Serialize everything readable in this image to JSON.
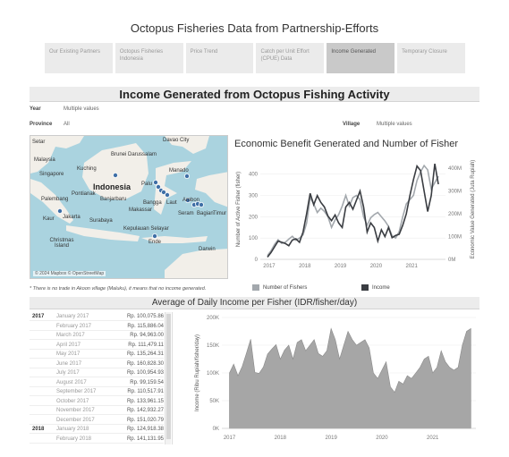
{
  "page_title": "Octopus Fisheries Data from Partnership-Efforts",
  "tabs": [
    {
      "label": "Our Existing Partners"
    },
    {
      "label": "Octopus Fisheries Indonesia"
    },
    {
      "label": "Price Trend"
    },
    {
      "label": "Catch per Unit Effort (CPUE) Data"
    },
    {
      "label": "Income Generated"
    },
    {
      "label": "Temporary Closure"
    }
  ],
  "active_tab": "Income Generated",
  "section_title": "Income Generated from Octopus Fishing Activity",
  "filters": {
    "year_label": "Year",
    "year_value": "Multiple values",
    "province_label": "Province",
    "province_value": "All",
    "village_label": "Village",
    "village_value": "Multiple values"
  },
  "map": {
    "attribution": "© 2024 Mapbox © OpenStreetMap",
    "labels": [
      "Setar",
      "Brunei Darussalam",
      "Davao City",
      "Malaysia",
      "Kuching",
      "Singapore",
      "Indonesia",
      "Manado",
      "Palu",
      "Pontianak",
      "Banjarbaru",
      "Palembang",
      "Makassar",
      "Bangga",
      "Laut",
      "Ambon",
      "Jakarta",
      "Surabaya",
      "Seram",
      "Bagian",
      "Timur",
      "Kaur",
      "Kepulauan Selayar",
      "Christmas Island",
      "Ende",
      "Darwin"
    ],
    "colors": {
      "sea": "#aad3df",
      "land": "#f2efe9",
      "marker": "#3f6fa6"
    }
  },
  "footnote": "* There is no trade in Akoon village (Maluku), it means that no income generated.",
  "chart1": {
    "title": "Economic Benefit Generated and Number of Fisher",
    "ylabel_left": "Number of Active Fisher (fisher)",
    "ylabel_right": "Economic Value Generated (Juta Rupiah)",
    "y_ticks_left": [
      "0",
      "100",
      "200",
      "300",
      "400"
    ],
    "y_ticks_right": [
      "0M",
      "100M",
      "200M",
      "300M",
      "400M"
    ],
    "x_ticks": [
      "2017",
      "2018",
      "2019",
      "2020",
      "2021"
    ],
    "legend": [
      {
        "name": "Number of Fishers",
        "color": "#a3a8ad"
      },
      {
        "name": "Income",
        "color": "#3a3d42"
      }
    ]
  },
  "chart2": {
    "title": "Average of Daily Income per Fisher (IDR/fisher/day)",
    "ylabel": "Income (Ribu Rupiah/fisher/day)",
    "y_ticks": [
      "0K",
      "50K",
      "100K",
      "150K",
      "200K"
    ],
    "x_ticks": [
      "2017",
      "2018",
      "2019",
      "2020",
      "2021"
    ]
  },
  "table": {
    "rows": [
      {
        "year": "2017",
        "month": "January 2017",
        "value": "Rp. 100,075.86"
      },
      {
        "year": "",
        "month": "February 2017",
        "value": "Rp. 115,886.04"
      },
      {
        "year": "",
        "month": "March 2017",
        "value": "Rp. 94,963.00"
      },
      {
        "year": "",
        "month": "April 2017",
        "value": "Rp. 111,479.11"
      },
      {
        "year": "",
        "month": "May 2017",
        "value": "Rp. 135,264.31"
      },
      {
        "year": "",
        "month": "June 2017",
        "value": "Rp. 160,828.30"
      },
      {
        "year": "",
        "month": "July 2017",
        "value": "Rp. 100,954.93"
      },
      {
        "year": "",
        "month": "August 2017",
        "value": "Rp. 99,159.54"
      },
      {
        "year": "",
        "month": "September 2017",
        "value": "Rp. 110,517.91"
      },
      {
        "year": "",
        "month": "October 2017",
        "value": "Rp. 133,961.15"
      },
      {
        "year": "",
        "month": "November 2017",
        "value": "Rp. 142,932.27"
      },
      {
        "year": "",
        "month": "December 2017",
        "value": "Rp. 151,020.79"
      },
      {
        "year": "2018",
        "month": "January 2018",
        "value": "Rp. 124,918.38"
      },
      {
        "year": "",
        "month": "February 2018",
        "value": "Rp. 141,131.95"
      }
    ]
  },
  "chart_data": [
    {
      "type": "line",
      "title": "Economic Benefit Generated and Number of Fisher",
      "xlabel": "",
      "ylabel": "Number of Active Fisher (fisher)",
      "x_range": [
        2016.75,
        2021.95
      ],
      "ylim": [
        0,
        470
      ],
      "y2lim": [
        0,
        440
      ],
      "series": [
        {
          "name": "Number of Fishers",
          "axis": "left",
          "x": [
            2016.95,
            2017.05,
            2017.15,
            2017.25,
            2017.35,
            2017.45,
            2017.55,
            2017.65,
            2017.75,
            2017.85,
            2017.95,
            2018.05,
            2018.15,
            2018.25,
            2018.35,
            2018.45,
            2018.55,
            2018.65,
            2018.75,
            2018.85,
            2018.95,
            2019.05,
            2019.15,
            2019.25,
            2019.35,
            2019.45,
            2019.55,
            2019.65,
            2019.75,
            2019.85,
            2019.95,
            2020.05,
            2020.15,
            2020.25,
            2020.35,
            2020.45,
            2020.55,
            2020.65,
            2020.75,
            2020.85,
            2020.95,
            2021.05,
            2021.15,
            2021.25,
            2021.35,
            2021.45,
            2021.55,
            2021.65,
            2021.75
          ],
          "y": [
            18,
            40,
            70,
            92,
            75,
            80,
            95,
            108,
            90,
            100,
            115,
            170,
            290,
            260,
            220,
            240,
            225,
            200,
            150,
            185,
            210,
            250,
            300,
            250,
            290,
            300,
            280,
            200,
            160,
            195,
            210,
            220,
            200,
            180,
            155,
            110,
            100,
            130,
            200,
            260,
            280,
            300,
            370,
            410,
            440,
            420,
            330,
            360,
            390
          ]
        },
        {
          "name": "Income",
          "axis": "right",
          "x": [
            2016.95,
            2017.05,
            2017.15,
            2017.25,
            2017.35,
            2017.45,
            2017.55,
            2017.65,
            2017.75,
            2017.85,
            2017.95,
            2018.05,
            2018.15,
            2018.25,
            2018.35,
            2018.45,
            2018.55,
            2018.65,
            2018.75,
            2018.85,
            2018.95,
            2019.05,
            2019.15,
            2019.25,
            2019.35,
            2019.45,
            2019.55,
            2019.65,
            2019.75,
            2019.85,
            2019.95,
            2020.05,
            2020.15,
            2020.25,
            2020.35,
            2020.45,
            2020.55,
            2020.65,
            2020.75,
            2020.85,
            2020.95,
            2021.05,
            2021.15,
            2021.25,
            2021.35,
            2021.45,
            2021.55,
            2021.65,
            2021.75
          ],
          "y": [
            10,
            30,
            55,
            80,
            75,
            70,
            60,
            85,
            90,
            75,
            120,
            200,
            290,
            240,
            280,
            250,
            230,
            190,
            170,
            195,
            160,
            140,
            230,
            250,
            220,
            260,
            300,
            230,
            120,
            160,
            140,
            80,
            130,
            100,
            140,
            95,
            105,
            110,
            150,
            200,
            280,
            350,
            410,
            390,
            300,
            210,
            280,
            420,
            330
          ]
        }
      ],
      "x_ticks": [
        "2017",
        "2018",
        "2019",
        "2020",
        "2021"
      ]
    },
    {
      "type": "area",
      "title": "Average of Daily Income per Fisher (IDR/fisher/day)",
      "xlabel": "",
      "ylabel": "Income (Ribu Rupiah/fisher/day)",
      "x_range": [
        2016.85,
        2021.85
      ],
      "ylim": [
        0,
        200000
      ],
      "series": [
        {
          "name": "",
          "x": [
            2017.0,
            2017.083,
            2017.167,
            2017.25,
            2017.333,
            2017.417,
            2017.5,
            2017.583,
            2017.667,
            2017.75,
            2017.833,
            2017.917,
            2018.0,
            2018.083,
            2018.167,
            2018.25,
            2018.333,
            2018.417,
            2018.5,
            2018.583,
            2018.667,
            2018.75,
            2018.833,
            2018.917,
            2019.0,
            2019.083,
            2019.167,
            2019.25,
            2019.333,
            2019.417,
            2019.5,
            2019.583,
            2019.667,
            2019.75,
            2019.833,
            2019.917,
            2020.0,
            2020.083,
            2020.167,
            2020.25,
            2020.333,
            2020.417,
            2020.5,
            2020.583,
            2020.667,
            2020.75,
            2020.833,
            2020.917,
            2021.0,
            2021.083,
            2021.167,
            2021.25,
            2021.333,
            2021.417,
            2021.5,
            2021.583,
            2021.667,
            2021.75
          ],
          "y": [
            100076,
            115886,
            94963,
            111479,
            135264,
            160828,
            100955,
            99160,
            110518,
            133961,
            142932,
            151021,
            124918,
            141132,
            150000,
            125000,
            155000,
            160000,
            140000,
            150000,
            160000,
            135000,
            130000,
            140000,
            180000,
            160000,
            125000,
            150000,
            175000,
            160000,
            150000,
            155000,
            160000,
            145000,
            100000,
            90000,
            105000,
            120000,
            75000,
            65000,
            85000,
            80000,
            95000,
            90000,
            100000,
            110000,
            125000,
            130000,
            100000,
            110000,
            140000,
            120000,
            110000,
            105000,
            110000,
            150000,
            175000,
            180000
          ]
        }
      ],
      "x_ticks": [
        "2017",
        "2018",
        "2019",
        "2020",
        "2021"
      ]
    }
  ]
}
